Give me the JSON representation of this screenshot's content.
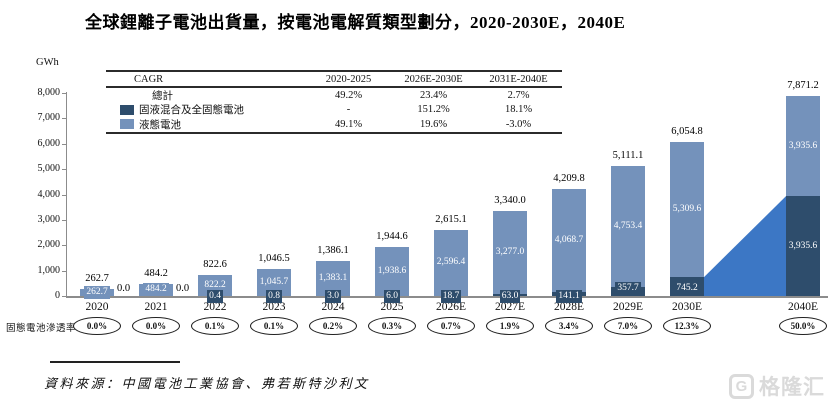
{
  "title": "全球鋰離子電池出貨量，按電池電解質類型劃分，2020-2030E，2040E",
  "y_axis": {
    "unit_label": "GWh",
    "tick_labels": [
      "0",
      "1,000",
      "2,000",
      "3,000",
      "4,000",
      "5,000",
      "6,000",
      "7,000",
      "8,000"
    ]
  },
  "cagr_table": {
    "headers": [
      "CAGR",
      "2020-2025",
      "2026E-2030E",
      "2031E-2040E"
    ],
    "rows": [
      {
        "label": "總計",
        "chip": "none",
        "values": [
          "49.2%",
          "23.4%",
          "2.7%"
        ]
      },
      {
        "label": "固液混合及全固態電池",
        "chip": "solid",
        "values": [
          "-",
          "151.2%",
          "18.1%"
        ]
      },
      {
        "label": "液態電池",
        "chip": "liquid",
        "values": [
          "49.1%",
          "19.6%",
          "-3.0%"
        ]
      }
    ]
  },
  "chart_data": {
    "type": "bar",
    "stacked": true,
    "unit": "GWh",
    "categories": [
      "2020",
      "2021",
      "2022",
      "2023",
      "2024",
      "2025",
      "2026E",
      "2027E",
      "2028E",
      "2029E",
      "2030E",
      "2040E"
    ],
    "series": [
      {
        "name": "固液混合及全固態電池",
        "color": "#2E4D6C",
        "values": [
          0.0,
          0.0,
          0.4,
          0.8,
          3.0,
          6.0,
          18.7,
          63.0,
          141.1,
          357.7,
          745.2,
          3935.6
        ]
      },
      {
        "name": "液態電池",
        "color": "#7492BB",
        "values": [
          262.7,
          484.2,
          822.2,
          1045.7,
          1383.1,
          1938.6,
          2596.4,
          3277.0,
          4068.7,
          4753.4,
          5309.6,
          3935.6
        ]
      }
    ],
    "totals": [
      262.7,
      484.2,
      822.6,
      1046.5,
      1386.1,
      1944.6,
      2615.1,
      3340.0,
      4209.8,
      5111.1,
      6054.8,
      7871.2
    ],
    "ylim": [
      0,
      8000
    ],
    "legend_position": "table-top-left",
    "grid": false,
    "connector_wedge": {
      "from_category": "2030E",
      "to_category": "2040E",
      "color": "#3C77C5"
    }
  },
  "penetration": {
    "label": "固態電池滲透率",
    "values": [
      "0.0%",
      "0.0%",
      "0.1%",
      "0.1%",
      "0.2%",
      "0.3%",
      "0.7%",
      "1.9%",
      "3.4%",
      "7.0%",
      "12.3%",
      "50.0%"
    ]
  },
  "source_note": "資料來源：中國電池工業協會、弗若斯特沙利文",
  "watermark": {
    "logo_letter": "G",
    "text": "格隆汇"
  },
  "colors": {
    "solid": "#2E4D6C",
    "liquid": "#7492BB",
    "wedge": "#3C77C5",
    "axis": "#8C8C8C"
  }
}
